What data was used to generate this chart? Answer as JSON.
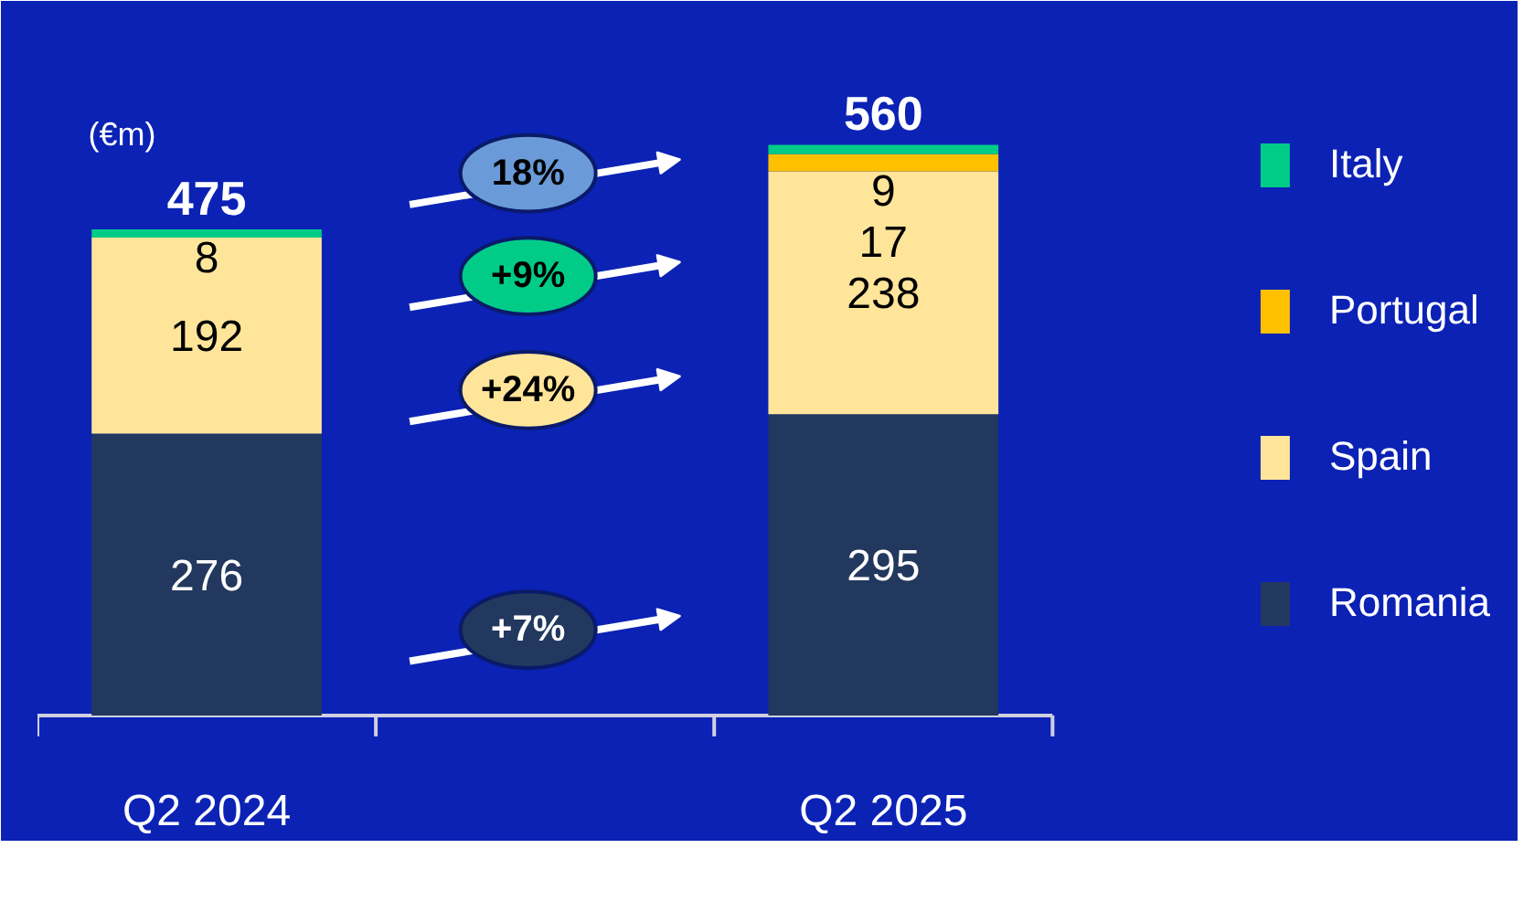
{
  "chart_data": {
    "type": "bar",
    "stacked": true,
    "data_labels": true,
    "legend": "right",
    "categories": [
      "Q2 2024",
      "Q2 2025"
    ],
    "series": [
      {
        "name": "Romania",
        "color": "#22385e",
        "values": [
          276,
          295
        ]
      },
      {
        "name": "Spain",
        "color": "#fee59a",
        "values": [
          192,
          238
        ]
      },
      {
        "name": "Portugal",
        "color": "#ffc000",
        "values": [
          null,
          17
        ]
      },
      {
        "name": "Italy",
        "color": "#00cc88",
        "values": [
          8,
          9
        ]
      }
    ],
    "totals": [
      "475",
      "560"
    ],
    "annotations": [
      "(€m)",
      "18%",
      "+9%",
      "+24%",
      "+7%"
    ]
  }
}
